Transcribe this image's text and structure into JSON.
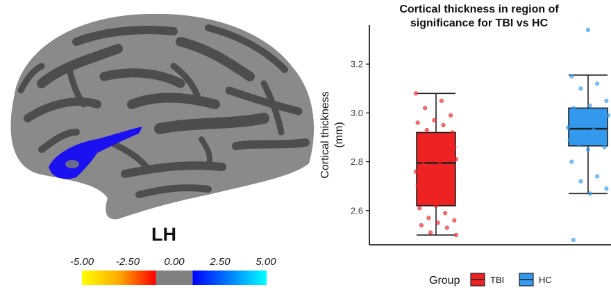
{
  "brain": {
    "hemisphere": "LH",
    "colorbar": {
      "tick_labels": [
        "-5.00",
        "-2.50",
        "0.00",
        "2.50",
        "5.00"
      ],
      "colors": [
        "#ffff00",
        "#ff8800",
        "#ff0000",
        "#808080",
        "#0000ff",
        "#00ffff"
      ]
    },
    "surface_colors": {
      "gyri": "#8a8a8a",
      "sulci": "#4d4d4d",
      "cluster": "#1a10f0"
    }
  },
  "chart_data": {
    "type": "box",
    "title_line1": "Cortical thickness in region of",
    "title_line2": "significance for TBI vs HC",
    "ylabel_line1": "Cortical thickness",
    "ylabel_line2": "(mm)",
    "y_ticks": [
      2.6,
      2.8,
      3.0,
      3.2
    ],
    "y_tick_labels": [
      "2.6",
      "2.8",
      "3.0",
      "3.2"
    ],
    "ylim": [
      2.46,
      3.36
    ],
    "legend_title": "Group",
    "legend_position": "bottom",
    "groups": [
      {
        "name": "TBI",
        "color": "#ee2222",
        "box": {
          "min": 2.5,
          "q1": 2.62,
          "median": 2.795,
          "q3": 2.92,
          "max": 3.08
        },
        "points": [
          3.08,
          3.05,
          3.02,
          2.99,
          2.97,
          2.96,
          2.95,
          2.93,
          2.92,
          2.91,
          2.9,
          2.89,
          2.88,
          2.86,
          2.85,
          2.84,
          2.83,
          2.82,
          2.81,
          2.8,
          2.79,
          2.78,
          2.77,
          2.76,
          2.75,
          2.74,
          2.73,
          2.72,
          2.7,
          2.68,
          2.66,
          2.64,
          2.62,
          2.61,
          2.59,
          2.57,
          2.56,
          2.55,
          2.54,
          2.53,
          2.51,
          2.5
        ]
      },
      {
        "name": "HC",
        "color": "#3399ee",
        "box": {
          "min": 2.67,
          "q1": 2.865,
          "median": 2.935,
          "q3": 3.02,
          "max": 3.155
        },
        "points": [
          3.34,
          3.15,
          3.12,
          3.1,
          3.05,
          3.03,
          3.02,
          3.01,
          3.0,
          2.99,
          2.98,
          2.97,
          2.96,
          2.95,
          2.94,
          2.93,
          2.92,
          2.91,
          2.9,
          2.89,
          2.88,
          2.87,
          2.86,
          2.85,
          2.8,
          2.74,
          2.72,
          2.69,
          2.67,
          2.48
        ]
      }
    ]
  }
}
